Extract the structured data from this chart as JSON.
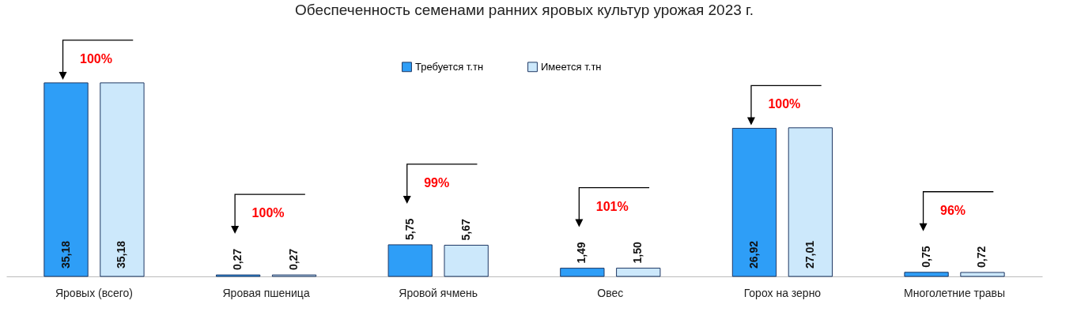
{
  "chart_data": {
    "type": "bar",
    "title": "Обеспеченность семенами ранних яровых культур урожая 2023 г.",
    "categories": [
      "Яровых (всего)",
      "Яровая пшеница",
      "Яровой ячмень",
      "Овес",
      "Горох на зерно",
      "Многолетние травы"
    ],
    "series": [
      {
        "name": "Требуется  т.тн",
        "color": "#2e9ef7",
        "values": [
          35.18,
          0.27,
          5.75,
          1.49,
          26.92,
          0.75
        ],
        "value_labels": [
          "35,18",
          "0,27",
          "5,75",
          "1,49",
          "26,92",
          "0,75"
        ]
      },
      {
        "name": "Имеется  т.тн",
        "color": "#cce8fb",
        "values": [
          35.18,
          0.27,
          5.67,
          1.5,
          27.01,
          0.72
        ],
        "value_labels": [
          "35,18",
          "0,27",
          "5,67",
          "1,50",
          "27,01",
          "0,72"
        ]
      }
    ],
    "legend": "top",
    "annotations": [
      "100%",
      "100%",
      "99%",
      "101%",
      "100%",
      "96%"
    ]
  }
}
